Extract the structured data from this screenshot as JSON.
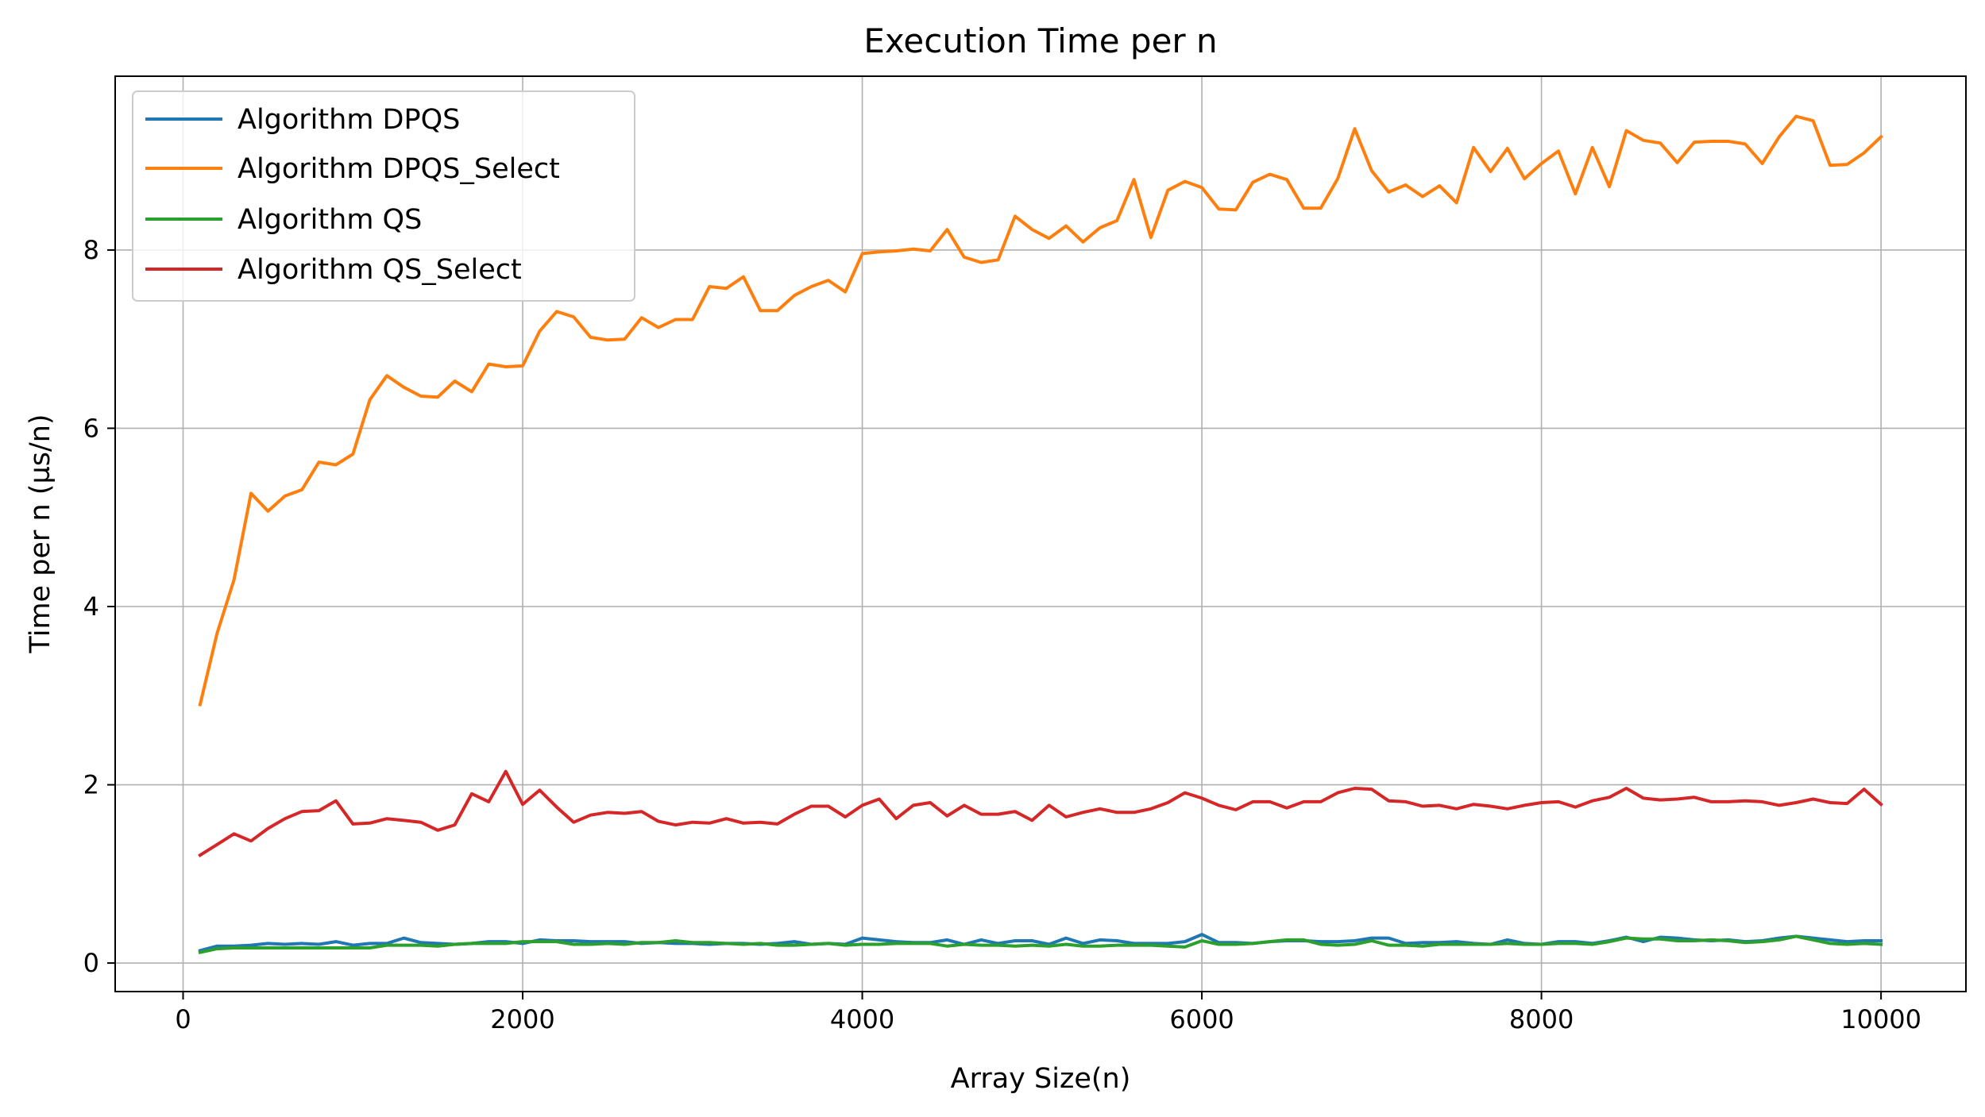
{
  "chart_data": {
    "type": "line",
    "title": "Execution Time per n",
    "xlabel": "Array Size(n)",
    "ylabel": "Time per n (µs/n)",
    "xlim": [
      -400,
      10500
    ],
    "ylim": [
      -0.32,
      9.95
    ],
    "xticks": [
      0,
      2000,
      4000,
      6000,
      8000,
      10000
    ],
    "xtick_labels": [
      "0",
      "2000",
      "4000",
      "6000",
      "8000",
      "10000"
    ],
    "yticks": [
      0,
      2,
      4,
      6,
      8
    ],
    "ytick_labels": [
      "0",
      "2",
      "4",
      "6",
      "8"
    ],
    "grid": true,
    "legend_position": "upper-left",
    "x_start": 100,
    "x_step": 100,
    "series": [
      {
        "name": "Algorithm DPQS",
        "color": "#1f77b4",
        "values": [
          0.14,
          0.19,
          0.19,
          0.2,
          0.22,
          0.21,
          0.22,
          0.21,
          0.24,
          0.2,
          0.22,
          0.22,
          0.28,
          0.23,
          0.22,
          0.21,
          0.22,
          0.24,
          0.24,
          0.22,
          0.26,
          0.25,
          0.25,
          0.24,
          0.24,
          0.24,
          0.22,
          0.23,
          0.22,
          0.22,
          0.21,
          0.22,
          0.22,
          0.21,
          0.22,
          0.24,
          0.21,
          0.22,
          0.21,
          0.28,
          0.26,
          0.24,
          0.23,
          0.23,
          0.26,
          0.21,
          0.26,
          0.22,
          0.25,
          0.25,
          0.21,
          0.28,
          0.22,
          0.26,
          0.25,
          0.22,
          0.22,
          0.22,
          0.24,
          0.32,
          0.23,
          0.23,
          0.22,
          0.24,
          0.25,
          0.25,
          0.24,
          0.24,
          0.25,
          0.28,
          0.28,
          0.22,
          0.23,
          0.23,
          0.24,
          0.22,
          0.21,
          0.26,
          0.22,
          0.21,
          0.24,
          0.24,
          0.22,
          0.25,
          0.29,
          0.24,
          0.29,
          0.28,
          0.26,
          0.25,
          0.26,
          0.24,
          0.25,
          0.28,
          0.3,
          0.28,
          0.26,
          0.24,
          0.25,
          0.25
        ]
      },
      {
        "name": "Algorithm DPQS_Select",
        "color": "#ff7f0e",
        "values": [
          2.9,
          3.7,
          4.3,
          5.27,
          5.07,
          5.24,
          5.31,
          5.62,
          5.59,
          5.71,
          6.32,
          6.59,
          6.46,
          6.36,
          6.35,
          6.53,
          6.41,
          6.72,
          6.69,
          6.7,
          7.09,
          7.31,
          7.25,
          7.02,
          6.99,
          7.0,
          7.24,
          7.13,
          7.22,
          7.22,
          7.59,
          7.57,
          7.7,
          7.32,
          7.32,
          7.49,
          7.59,
          7.66,
          7.53,
          7.96,
          7.98,
          7.99,
          8.01,
          7.99,
          8.23,
          7.92,
          7.86,
          7.89,
          8.38,
          8.23,
          8.13,
          8.27,
          8.09,
          8.25,
          8.33,
          8.79,
          8.14,
          8.67,
          8.77,
          8.7,
          8.46,
          8.45,
          8.76,
          8.85,
          8.79,
          8.47,
          8.47,
          8.8,
          9.36,
          8.89,
          8.65,
          8.73,
          8.6,
          8.72,
          8.53,
          9.15,
          8.88,
          9.14,
          8.8,
          8.97,
          9.11,
          8.63,
          9.15,
          8.71,
          9.34,
          9.23,
          9.2,
          8.98,
          9.21,
          9.22,
          9.22,
          9.19,
          8.97,
          9.27,
          9.5,
          9.45,
          8.95,
          8.96,
          9.09,
          9.27
        ]
      },
      {
        "name": "Algorithm QS",
        "color": "#2ca02c",
        "values": [
          0.12,
          0.16,
          0.17,
          0.17,
          0.17,
          0.17,
          0.17,
          0.17,
          0.17,
          0.17,
          0.17,
          0.2,
          0.2,
          0.2,
          0.19,
          0.21,
          0.22,
          0.22,
          0.22,
          0.24,
          0.24,
          0.24,
          0.21,
          0.21,
          0.22,
          0.21,
          0.23,
          0.23,
          0.25,
          0.23,
          0.23,
          0.22,
          0.21,
          0.22,
          0.2,
          0.2,
          0.21,
          0.22,
          0.2,
          0.21,
          0.21,
          0.22,
          0.22,
          0.22,
          0.19,
          0.21,
          0.2,
          0.2,
          0.19,
          0.2,
          0.19,
          0.21,
          0.19,
          0.19,
          0.2,
          0.2,
          0.2,
          0.19,
          0.18,
          0.25,
          0.21,
          0.21,
          0.22,
          0.24,
          0.26,
          0.26,
          0.21,
          0.2,
          0.21,
          0.25,
          0.2,
          0.2,
          0.19,
          0.21,
          0.21,
          0.21,
          0.21,
          0.22,
          0.21,
          0.21,
          0.22,
          0.22,
          0.21,
          0.24,
          0.28,
          0.27,
          0.27,
          0.25,
          0.25,
          0.26,
          0.25,
          0.23,
          0.24,
          0.26,
          0.3,
          0.26,
          0.22,
          0.21,
          0.22,
          0.21
        ]
      },
      {
        "name": "Algorithm QS_Select",
        "color": "#d62728",
        "values": [
          1.21,
          1.33,
          1.45,
          1.37,
          1.51,
          1.62,
          1.7,
          1.71,
          1.82,
          1.56,
          1.57,
          1.62,
          1.6,
          1.58,
          1.49,
          1.55,
          1.9,
          1.81,
          2.15,
          1.78,
          1.94,
          1.75,
          1.58,
          1.66,
          1.69,
          1.68,
          1.7,
          1.59,
          1.55,
          1.58,
          1.57,
          1.62,
          1.57,
          1.58,
          1.56,
          1.67,
          1.76,
          1.76,
          1.64,
          1.77,
          1.84,
          1.62,
          1.77,
          1.8,
          1.65,
          1.77,
          1.67,
          1.67,
          1.7,
          1.6,
          1.77,
          1.64,
          1.69,
          1.73,
          1.69,
          1.69,
          1.73,
          1.8,
          1.91,
          1.85,
          1.77,
          1.72,
          1.81,
          1.81,
          1.74,
          1.81,
          1.81,
          1.91,
          1.96,
          1.95,
          1.82,
          1.81,
          1.76,
          1.77,
          1.73,
          1.78,
          1.76,
          1.73,
          1.77,
          1.8,
          1.81,
          1.75,
          1.82,
          1.86,
          1.96,
          1.85,
          1.83,
          1.84,
          1.86,
          1.81,
          1.81,
          1.82,
          1.81,
          1.77,
          1.8,
          1.84,
          1.8,
          1.79,
          1.95,
          1.78
        ]
      }
    ]
  }
}
